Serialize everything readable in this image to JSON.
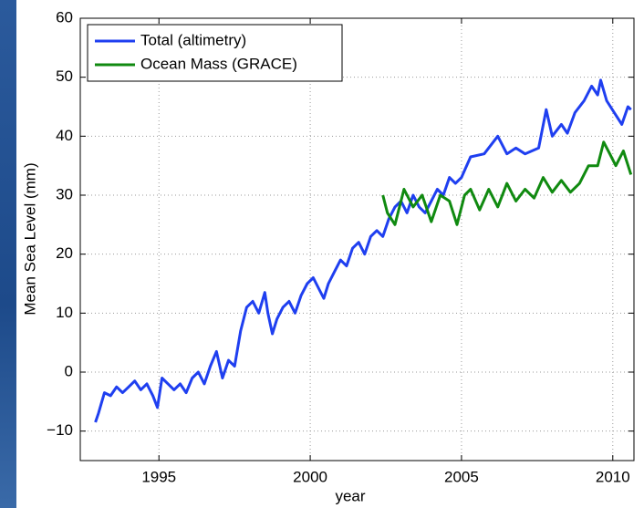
{
  "chart_data": {
    "type": "line",
    "xlabel": "year",
    "ylabel": "Mean Sea Level (mm)",
    "xlim": [
      1992.4,
      2010.7
    ],
    "xticks": [
      1995,
      2000,
      2005,
      2010
    ],
    "ylim": [
      -15,
      60
    ],
    "yticks": [
      {
        "value": -10,
        "label": "−10"
      },
      0,
      10,
      20,
      30,
      40,
      50,
      60
    ],
    "grid": true,
    "legend": "upper left",
    "series": [
      {
        "name": "Total (altimetry)",
        "color": "#1f3ff0",
        "x": [
          1992.9,
          1993.0,
          1993.2,
          1993.4,
          1993.6,
          1993.8,
          1994.0,
          1994.2,
          1994.4,
          1994.6,
          1994.8,
          1994.95,
          1995.1,
          1995.3,
          1995.5,
          1995.7,
          1995.9,
          1996.1,
          1996.3,
          1996.5,
          1996.7,
          1996.9,
          1997.1,
          1997.3,
          1997.5,
          1997.7,
          1997.9,
          1998.1,
          1998.3,
          1998.5,
          1998.6,
          1998.75,
          1998.9,
          1999.1,
          1999.3,
          1999.5,
          1999.7,
          1999.9,
          2000.1,
          2000.3,
          2000.45,
          2000.6,
          2000.8,
          2001.0,
          2001.2,
          2001.4,
          2001.6,
          2001.8,
          2002.0,
          2002.2,
          2002.4,
          2002.6,
          2002.8,
          2003.0,
          2003.2,
          2003.4,
          2003.6,
          2003.8,
          2004.0,
          2004.2,
          2004.4,
          2004.6,
          2004.8,
          2005.0,
          2005.3,
          2005.75,
          2006.2,
          2006.5,
          2006.8,
          2007.1,
          2007.55,
          2007.8,
          2008.0,
          2008.3,
          2008.5,
          2008.75,
          2009.05,
          2009.3,
          2009.5,
          2009.6,
          2009.8,
          2010.05,
          2010.3,
          2010.5,
          2010.6
        ],
        "values": [
          -8.5,
          -7,
          -3.5,
          -4,
          -2.5,
          -3.5,
          -2.5,
          -1.5,
          -3,
          -2,
          -4,
          -6,
          -1,
          -2,
          -3,
          -2,
          -3.5,
          -1,
          0,
          -2,
          1,
          3.5,
          -1,
          2,
          1,
          7,
          11,
          12,
          10,
          13.5,
          10,
          6.5,
          9,
          11,
          12,
          10,
          13,
          15,
          16,
          14,
          12.5,
          15,
          17,
          19,
          18,
          21,
          22,
          20,
          23,
          24,
          23,
          26,
          28,
          29,
          27,
          30,
          28,
          27,
          29,
          31,
          30,
          33,
          32,
          33,
          36.5,
          37,
          40,
          37,
          38,
          37,
          38,
          44.5,
          40,
          42,
          40.5,
          44,
          46,
          48.5,
          47,
          49.5,
          46,
          44,
          42,
          45,
          44.5
        ]
      },
      {
        "name": "Ocean Mass (GRACE)",
        "color": "#108a10",
        "x": [
          2002.4,
          2002.55,
          2002.8,
          2003.1,
          2003.4,
          2003.7,
          2004.0,
          2004.3,
          2004.6,
          2004.85,
          2005.1,
          2005.3,
          2005.6,
          2005.9,
          2006.2,
          2006.5,
          2006.8,
          2007.1,
          2007.4,
          2007.7,
          2008.0,
          2008.3,
          2008.6,
          2008.9,
          2009.2,
          2009.5,
          2009.7,
          2009.9,
          2010.1,
          2010.35,
          2010.6
        ],
        "values": [
          30,
          27,
          25,
          31,
          28,
          30,
          25.5,
          30,
          29,
          25,
          30,
          31,
          27.5,
          31,
          28,
          32,
          29,
          31,
          29.5,
          33,
          30.5,
          32.5,
          30.5,
          32,
          35,
          35,
          39,
          37,
          35,
          37.5,
          33.5
        ]
      }
    ]
  }
}
